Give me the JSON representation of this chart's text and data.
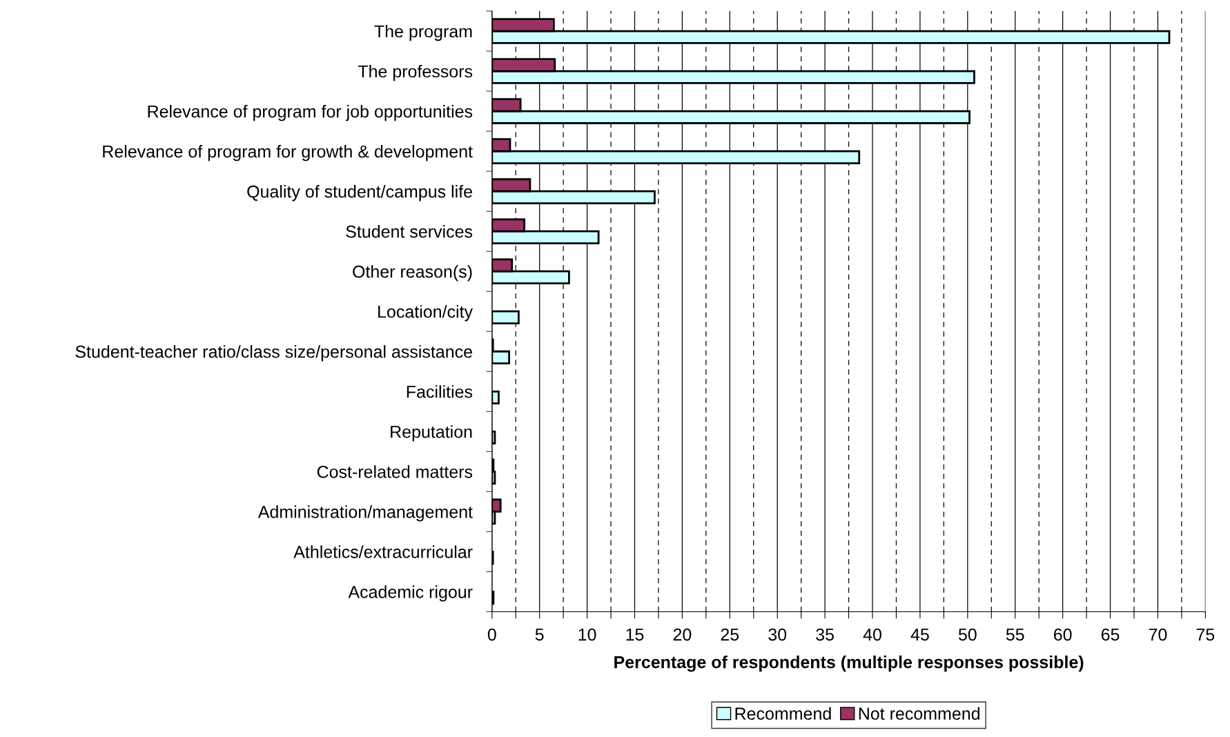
{
  "chart_data": {
    "type": "bar",
    "orientation": "horizontal",
    "categories": [
      "The program",
      "The professors",
      "Relevance of program for job opportunities",
      "Relevance of program for growth & development",
      "Quality of student/campus life",
      "Student services",
      "Other reason(s)",
      "Location/city",
      "Student-teacher ratio/class size/personal assistance",
      "Facilities",
      "Reputation",
      "Cost-related matters",
      "Administration/management",
      "Athletics/extracurricular",
      "Academic rigour"
    ],
    "series": [
      {
        "name": "Recommend",
        "color": "#ccffff",
        "values": [
          71.2,
          50.7,
          50.2,
          38.6,
          17.1,
          11.2,
          8.1,
          2.8,
          1.8,
          0.7,
          0.3,
          0.3,
          0.3,
          0.1,
          0.15
        ]
      },
      {
        "name": "Not recommend",
        "color": "#993366",
        "values": [
          6.5,
          6.6,
          3.0,
          1.9,
          4.0,
          3.4,
          2.1,
          null,
          0.1,
          null,
          null,
          0.15,
          0.9,
          null,
          null
        ]
      }
    ],
    "xlabel": "Percentage of respondents (multiple responses possible)",
    "xlim": [
      0,
      75
    ],
    "xticks": [
      0,
      {
        "value": 2.5,
        "label": null
      },
      5,
      {
        "value": 7.5,
        "label": null
      },
      10,
      {
        "value": 12.5,
        "label": null
      },
      15,
      {
        "value": 17.5,
        "label": null
      },
      20,
      {
        "value": 22.5,
        "label": null
      },
      25,
      {
        "value": 27.5,
        "label": null
      },
      30,
      {
        "value": 32.5,
        "label": null
      },
      35,
      {
        "value": 37.5,
        "label": null
      },
      40,
      {
        "value": 42.5,
        "label": null
      },
      45,
      {
        "value": 47.5,
        "label": null
      },
      50,
      {
        "value": 52.5,
        "label": null
      },
      55,
      {
        "value": 57.5,
        "label": null
      },
      60,
      {
        "value": 62.5,
        "label": null
      },
      65,
      {
        "value": 67.5,
        "label": null
      },
      70,
      {
        "value": 72.5,
        "label": null
      },
      75
    ],
    "grid": "x",
    "legend": "bottom"
  }
}
